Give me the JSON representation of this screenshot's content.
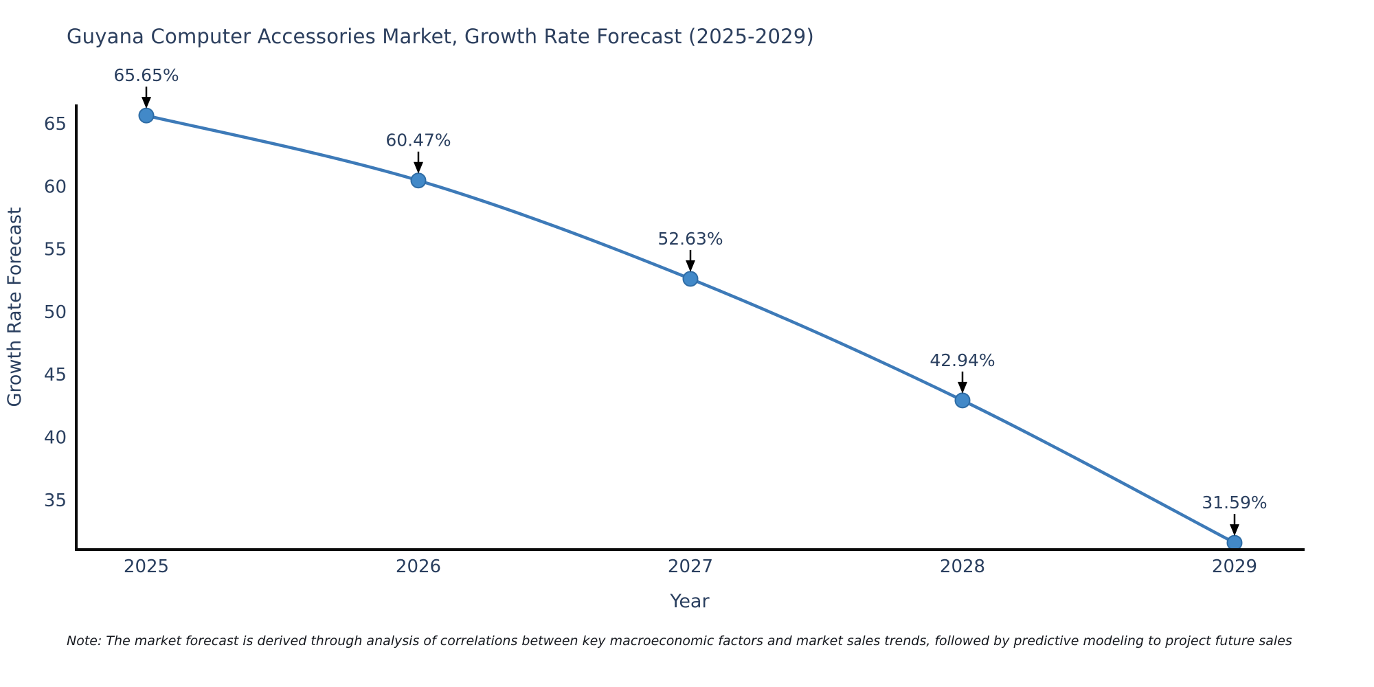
{
  "chart_data": {
    "type": "line",
    "title": "Guyana Computer Accessories Market, Growth Rate Forecast (2025-2029)",
    "xlabel": "Year",
    "ylabel": "Growth Rate Forecast",
    "categories": [
      "2025",
      "2026",
      "2027",
      "2028",
      "2029"
    ],
    "values": [
      65.65,
      60.47,
      52.63,
      42.94,
      31.59
    ],
    "point_labels": [
      "65.65%",
      "60.47%",
      "52.63%",
      "42.94%",
      "31.59%"
    ],
    "yticks": [
      65,
      60,
      55,
      50,
      45,
      40,
      35
    ],
    "ylim": [
      31.0,
      66.4
    ],
    "grid": false,
    "legend": "none",
    "colors": {
      "line": "#3d7ab8",
      "marker_fill": "#4289c8",
      "marker_edge": "#2e6ca5",
      "axis": "#0a0a0a",
      "text": "#2a3f5f",
      "annotation_arrow": "#000000"
    }
  },
  "note": {
    "text": "Note: The market forecast is derived through analysis of correlations between key macroeconomic factors and market sales trends, followed by predictive modeling to project future sales"
  }
}
